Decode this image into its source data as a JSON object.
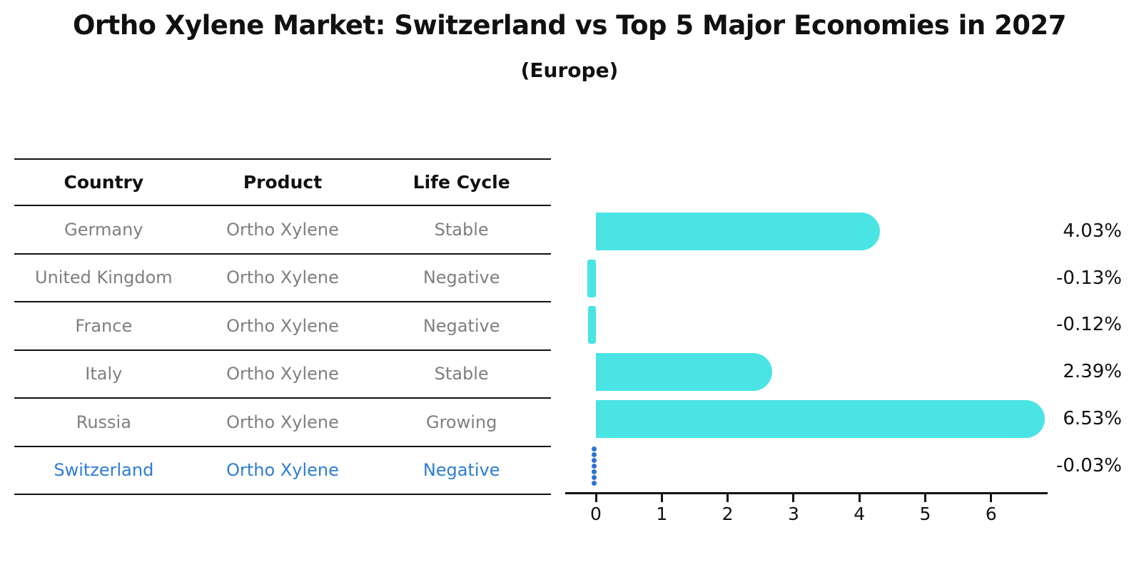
{
  "title": "Ortho Xylene Market: Switzerland vs Top 5 Major Economies in 2027",
  "subtitle": "(Europe)",
  "table": {
    "headers": [
      "Country",
      "Product",
      "Life Cycle"
    ],
    "rows": [
      {
        "country": "Germany",
        "product": "Ortho Xylene",
        "life_cycle": "Stable",
        "highlight": false
      },
      {
        "country": "United Kingdom",
        "product": "Ortho Xylene",
        "life_cycle": "Negative",
        "highlight": false
      },
      {
        "country": "France",
        "product": "Ortho Xylene",
        "life_cycle": "Negative",
        "highlight": false
      },
      {
        "country": "Italy",
        "product": "Ortho Xylene",
        "life_cycle": "Stable",
        "highlight": false
      },
      {
        "country": "Russia",
        "product": "Ortho Xylene",
        "life_cycle": "Growing",
        "highlight": false
      },
      {
        "country": "Switzerland",
        "product": "Ortho Xylene",
        "life_cycle": "Negative",
        "highlight": true
      }
    ]
  },
  "chart_data": {
    "type": "bar",
    "orientation": "horizontal",
    "title": "Ortho Xylene Market: Switzerland vs Top 5 Major Economies in 2027 (Europe)",
    "categories": [
      "Germany",
      "United Kingdom",
      "France",
      "Italy",
      "Russia",
      "Switzerland"
    ],
    "values": [
      4.03,
      -0.13,
      -0.12,
      2.39,
      6.53,
      -0.03
    ],
    "value_labels": [
      "4.03%",
      "-0.13%",
      "-0.12%",
      "2.39%",
      "6.53%",
      "-0.03%"
    ],
    "x_ticks": [
      0,
      1,
      2,
      3,
      4,
      5,
      6
    ],
    "xlim": [
      -0.46,
      6.85
    ],
    "grid": false,
    "legend": false,
    "highlight_category": "Switzerland",
    "highlight_style": "blue-dotted-line",
    "bar_color": "#4be4e4",
    "highlight_color": "#2b72d3"
  },
  "colors": {
    "text_primary": "#111111",
    "table_text_muted": "#7f7f7f",
    "highlight_text": "#2d7dd2",
    "rule_lines": "#111111"
  }
}
